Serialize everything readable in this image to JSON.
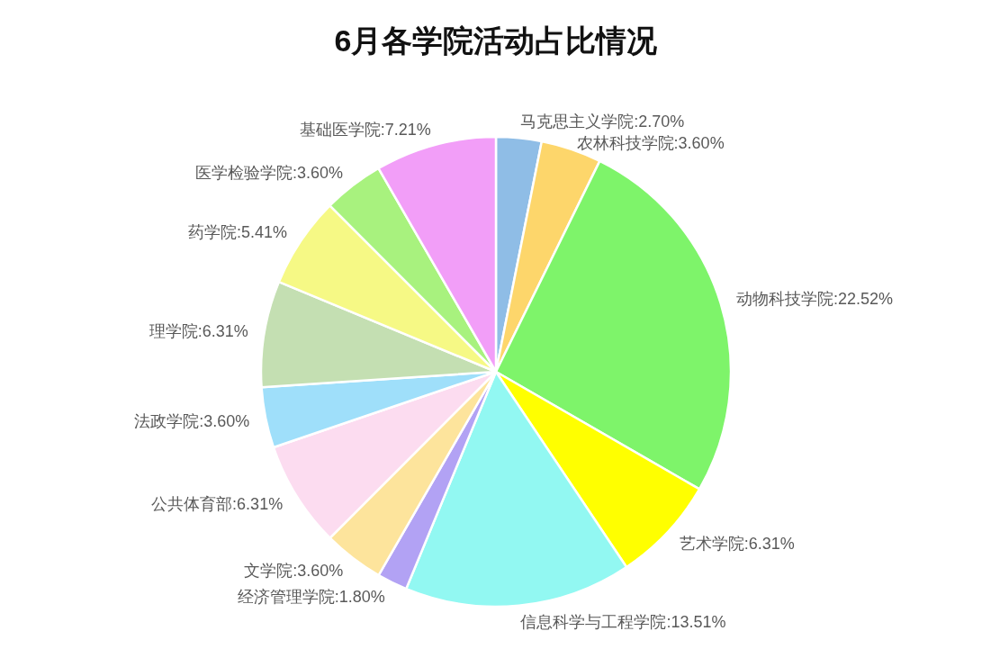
{
  "chart_data": {
    "type": "pie",
    "title": "6月各学院活动占比情况",
    "categories": [
      "马克思主义学院",
      "农林科技学院",
      "动物科技学院",
      "艺术学院",
      "信息科学与工程学院",
      "经济管理学院",
      "文学院",
      "公共体育部",
      "法政学院",
      "理学院",
      "药学院",
      "医学检验学院",
      "基础医学院"
    ],
    "values": [
      2.7,
      3.6,
      22.52,
      6.31,
      13.51,
      1.8,
      3.6,
      6.31,
      3.6,
      6.31,
      5.41,
      3.6,
      7.21
    ],
    "value_labels": [
      "2.70%",
      "3.60%",
      "22.52%",
      "6.31%",
      "13.51%",
      "1.80%",
      "3.60%",
      "6.31%",
      "3.60%",
      "6.31%",
      "5.41%",
      "3.60%",
      "7.21%"
    ],
    "colors": [
      "#8fbde6",
      "#fdd66b",
      "#7ef46a",
      "#ffff00",
      "#92f8f2",
      "#b2a2f4",
      "#fde49c",
      "#fcdcf0",
      "#9fdffa",
      "#c4dfb2",
      "#f6f985",
      "#a8f27e",
      "#f29ef8"
    ]
  }
}
